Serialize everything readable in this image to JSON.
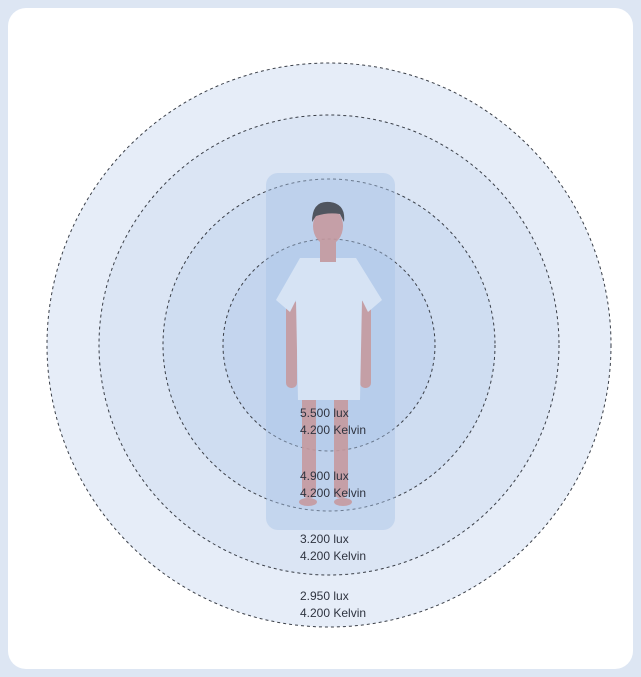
{
  "rings": [
    {
      "lux": "5.500 lux",
      "kelvin": "4.200 Kelvin"
    },
    {
      "lux": "4.900 lux",
      "kelvin": "4.200 Kelvin"
    },
    {
      "lux": "3.200 lux",
      "kelvin": "4.200 Kelvin"
    },
    {
      "lux": "2.950 lux",
      "kelvin": "4.200 Kelvin"
    }
  ]
}
